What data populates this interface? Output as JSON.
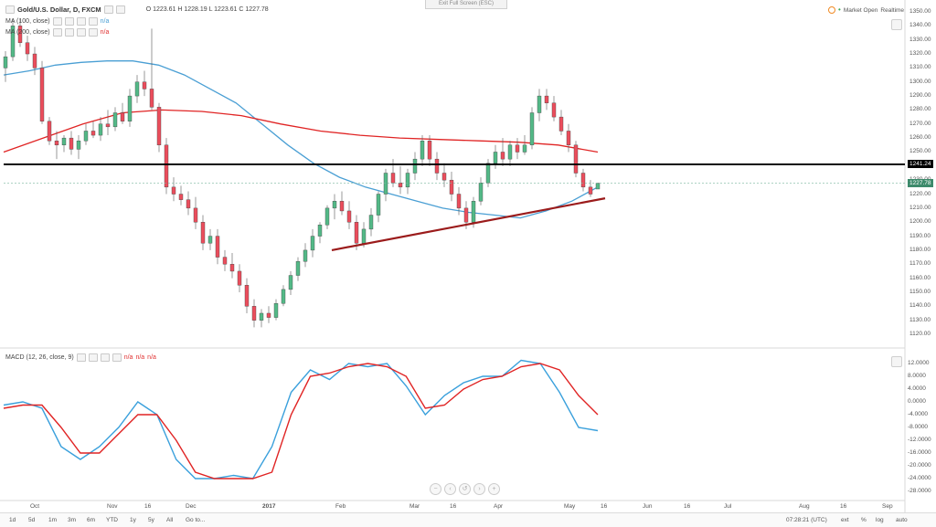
{
  "header": {
    "symbol": "Gold/U.S. Dollar, D, FXCM",
    "ohlc": "O 1223.61  H 1228.19  L 1223.61  C 1227.78",
    "ma1_label": "MA (100, close)",
    "ma1_value": "n/a",
    "ma2_label": "MA (200, close)",
    "ma2_value": "n/a",
    "exit_fullscreen": "Exit Full Screen (ESC)",
    "market_status": "Market Open",
    "realtime": "Realtime"
  },
  "macd": {
    "label": "MACD (12, 26, close, 9)",
    "v1": "n/a",
    "v2": "n/a",
    "v3": "n/a",
    "y_ticks": [
      "12.0000",
      "8.0000",
      "4.0000",
      "0.0000",
      "-4.0000",
      "-8.0000",
      "-12.0000",
      "-16.0000",
      "-20.0000",
      "-24.0000",
      "-28.0000"
    ]
  },
  "price_axis": {
    "ticks": [
      "1350.00",
      "1340.00",
      "1330.00",
      "1320.00",
      "1310.00",
      "1300.00",
      "1290.00",
      "1280.00",
      "1270.00",
      "1260.00",
      "1250.00",
      "1240.00",
      "1230.00",
      "1220.00",
      "1210.00",
      "1200.00",
      "1190.00",
      "1180.00",
      "1170.00",
      "1160.00",
      "1150.00",
      "1140.00",
      "1130.00",
      "1120.00"
    ],
    "resistance_tag": "1241.24",
    "last_price_tag": "1227.78",
    "colors": {
      "resistance": "#000000",
      "last": "#3d8a6b"
    }
  },
  "time_axis": {
    "labels": [
      "Oct",
      "Nov",
      "16",
      "Dec",
      "2017",
      "Feb",
      "Mar",
      "16",
      "Apr",
      "May",
      "16",
      "Jun",
      "16",
      "Jul",
      "Aug",
      "16",
      "Sep"
    ]
  },
  "bottom_bar": {
    "ranges": [
      "1d",
      "5d",
      "1m",
      "3m",
      "6m",
      "YTD",
      "1y",
      "5y",
      "All"
    ],
    "goto": "Go to...",
    "time": "07:28:21 (UTC)",
    "options": [
      "ext",
      "%",
      "log",
      "auto"
    ]
  },
  "chart_data": {
    "type": "candlestick",
    "title": "Gold/U.S. Dollar, D, FXCM",
    "ylim": [
      1115,
      1355
    ],
    "candles": [
      [
        1310,
        1322,
        1300,
        1318
      ],
      [
        1318,
        1345,
        1315,
        1340
      ],
      [
        1340,
        1345,
        1325,
        1328
      ],
      [
        1328,
        1333,
        1315,
        1320
      ],
      [
        1320,
        1325,
        1305,
        1310
      ],
      [
        1310,
        1315,
        1270,
        1272
      ],
      [
        1272,
        1275,
        1255,
        1258
      ],
      [
        1258,
        1265,
        1245,
        1255
      ],
      [
        1255,
        1262,
        1250,
        1260
      ],
      [
        1260,
        1265,
        1248,
        1252
      ],
      [
        1252,
        1262,
        1245,
        1258
      ],
      [
        1258,
        1270,
        1255,
        1265
      ],
      [
        1265,
        1272,
        1260,
        1262
      ],
      [
        1262,
        1275,
        1258,
        1270
      ],
      [
        1270,
        1280,
        1262,
        1268
      ],
      [
        1268,
        1282,
        1265,
        1278
      ],
      [
        1278,
        1285,
        1270,
        1272
      ],
      [
        1272,
        1295,
        1268,
        1290
      ],
      [
        1290,
        1305,
        1285,
        1300
      ],
      [
        1300,
        1308,
        1290,
        1295
      ],
      [
        1295,
        1338,
        1280,
        1282
      ],
      [
        1282,
        1285,
        1250,
        1255
      ],
      [
        1255,
        1260,
        1220,
        1225
      ],
      [
        1225,
        1232,
        1215,
        1220
      ],
      [
        1220,
        1226,
        1212,
        1216
      ],
      [
        1216,
        1222,
        1205,
        1210
      ],
      [
        1210,
        1218,
        1195,
        1200
      ],
      [
        1200,
        1205,
        1180,
        1185
      ],
      [
        1185,
        1195,
        1180,
        1190
      ],
      [
        1190,
        1195,
        1170,
        1175
      ],
      [
        1175,
        1180,
        1165,
        1170
      ],
      [
        1170,
        1178,
        1160,
        1165
      ],
      [
        1165,
        1170,
        1150,
        1155
      ],
      [
        1155,
        1160,
        1135,
        1140
      ],
      [
        1140,
        1145,
        1125,
        1130
      ],
      [
        1130,
        1138,
        1125,
        1135
      ],
      [
        1135,
        1140,
        1128,
        1132
      ],
      [
        1132,
        1145,
        1130,
        1142
      ],
      [
        1142,
        1155,
        1140,
        1152
      ],
      [
        1152,
        1165,
        1148,
        1162
      ],
      [
        1162,
        1175,
        1158,
        1172
      ],
      [
        1172,
        1185,
        1168,
        1180
      ],
      [
        1180,
        1195,
        1175,
        1190
      ],
      [
        1190,
        1200,
        1185,
        1198
      ],
      [
        1198,
        1212,
        1195,
        1210
      ],
      [
        1210,
        1220,
        1202,
        1215
      ],
      [
        1215,
        1222,
        1205,
        1208
      ],
      [
        1208,
        1215,
        1195,
        1200
      ],
      [
        1200,
        1205,
        1180,
        1185
      ],
      [
        1185,
        1200,
        1182,
        1195
      ],
      [
        1195,
        1210,
        1190,
        1205
      ],
      [
        1205,
        1222,
        1200,
        1220
      ],
      [
        1220,
        1238,
        1215,
        1235
      ],
      [
        1235,
        1245,
        1225,
        1228
      ],
      [
        1228,
        1240,
        1220,
        1225
      ],
      [
        1225,
        1238,
        1220,
        1235
      ],
      [
        1235,
        1250,
        1230,
        1245
      ],
      [
        1245,
        1262,
        1240,
        1258
      ],
      [
        1258,
        1262,
        1240,
        1245
      ],
      [
        1245,
        1250,
        1230,
        1235
      ],
      [
        1235,
        1242,
        1225,
        1230
      ],
      [
        1230,
        1236,
        1215,
        1220
      ],
      [
        1220,
        1225,
        1205,
        1210
      ],
      [
        1210,
        1215,
        1195,
        1200
      ],
      [
        1200,
        1218,
        1196,
        1215
      ],
      [
        1215,
        1232,
        1212,
        1228
      ],
      [
        1228,
        1245,
        1225,
        1242
      ],
      [
        1242,
        1255,
        1238,
        1250
      ],
      [
        1250,
        1260,
        1240,
        1245
      ],
      [
        1245,
        1258,
        1240,
        1255
      ],
      [
        1255,
        1260,
        1245,
        1250
      ],
      [
        1250,
        1262,
        1248,
        1255
      ],
      [
        1255,
        1282,
        1252,
        1278
      ],
      [
        1278,
        1295,
        1272,
        1290
      ],
      [
        1290,
        1295,
        1280,
        1285
      ],
      [
        1285,
        1290,
        1272,
        1275
      ],
      [
        1275,
        1280,
        1262,
        1265
      ],
      [
        1265,
        1270,
        1250,
        1255
      ],
      [
        1255,
        1258,
        1232,
        1235
      ],
      [
        1235,
        1238,
        1222,
        1225
      ],
      [
        1225,
        1230,
        1218,
        1220
      ],
      [
        1223.61,
        1228.19,
        1223.61,
        1227.78
      ]
    ],
    "ma100": [
      1305,
      1308,
      1312,
      1314,
      1315,
      1315,
      1312,
      1305,
      1295,
      1285,
      1270,
      1255,
      1242,
      1232,
      1225,
      1220,
      1215,
      1210,
      1207,
      1205,
      1203,
      1208,
      1215,
      1225
    ],
    "ma200": [
      1250,
      1260,
      1270,
      1278,
      1280,
      1279,
      1276,
      1270,
      1265,
      1262,
      1260,
      1259,
      1258,
      1257,
      1255,
      1250
    ],
    "resistance": 1241.24,
    "trendline": {
      "from": 1180,
      "to": 1217
    },
    "macd_line": [
      -1,
      0,
      -2,
      -14,
      -18,
      -14,
      -8,
      0,
      -4,
      -18,
      -24,
      -24,
      -23,
      -24,
      -14,
      3,
      10,
      7,
      12,
      11,
      12,
      5,
      -4,
      2,
      6,
      8,
      8,
      13,
      12,
      3,
      -8,
      -9
    ],
    "signal_line": [
      -2,
      -1,
      -1,
      -8,
      -16,
      -16,
      -10,
      -4,
      -4,
      -12,
      -22,
      -24,
      -24,
      -24,
      -22,
      -4,
      8,
      9,
      11,
      12,
      11,
      8,
      -2,
      -1,
      4,
      7,
      8,
      11,
      12,
      10,
      2,
      -4
    ]
  }
}
